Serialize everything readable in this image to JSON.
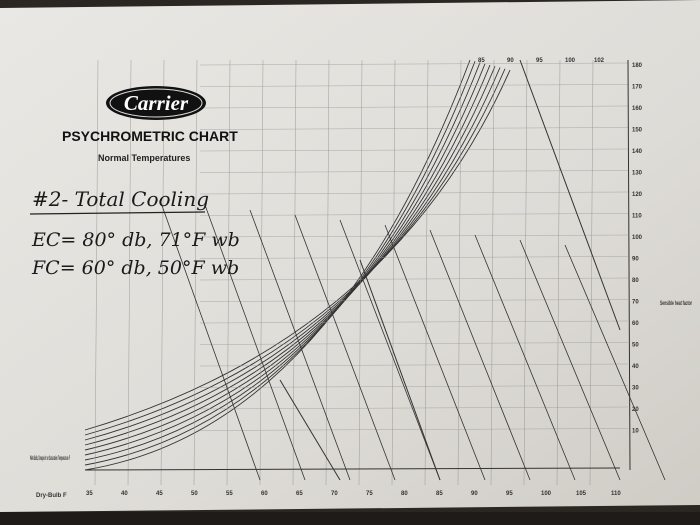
{
  "header": {
    "brand": "Carrier",
    "title": "PSYCHROMETRIC CHART",
    "subtitle": "Normal Temperatures"
  },
  "notes": {
    "heading": "#2- Total Cooling",
    "lines": [
      "EC= 80° db, 71°F wb",
      "FC= 60° db, 50°F wb"
    ]
  },
  "axes": {
    "dry_bulb_label": "Dry-Bulb F",
    "wet_bulb_label": "Wet-Bulb, Dewpoint or Saturation Temperature F",
    "top_ticks": [
      "85",
      "90",
      "95",
      "100",
      "102"
    ],
    "right_ticks": [
      "180",
      "170",
      "160",
      "150",
      "140",
      "130",
      "120",
      "110",
      "100",
      "90",
      "80",
      "70",
      "60",
      "50",
      "40",
      "30",
      "20",
      "10"
    ],
    "bottom_ticks": [
      "35",
      "40",
      "45",
      "50",
      "55",
      "60",
      "65",
      "70",
      "75",
      "80",
      "85",
      "90",
      "95",
      "100",
      "105",
      "110"
    ]
  },
  "right_note": "Sensible heat factor"
}
